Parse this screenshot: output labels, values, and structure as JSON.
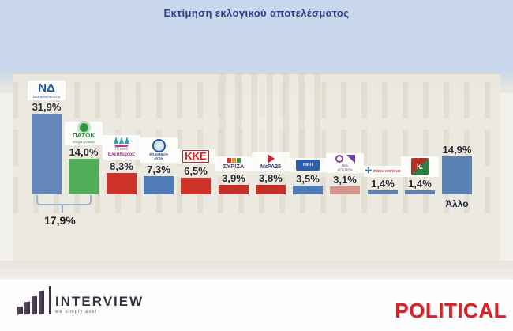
{
  "title": "Εκτίμηση εκλογικού αποτελέσματος",
  "colors": {
    "sky": "#c9d7ec",
    "title_text": "#2e3c8c",
    "bar_blue": "#6486ba",
    "bar_green": "#4fae57",
    "bar_red": "#cc3227",
    "bar_pink": "#d4948c",
    "bracket": "#9fb4d0",
    "political_red": "#d2232a",
    "interview_dark": "#3c3144"
  },
  "chart_data": {
    "type": "bar",
    "title": "Εκτίμηση εκλογικού αποτελέσματος",
    "xlabel": "",
    "ylabel": "",
    "unit": "%",
    "ylim": [
      0,
      35
    ],
    "grid": false,
    "legend": "none",
    "categories": [
      "ΝΔ",
      "ΠΑΣΟΚ",
      "Πλεύση Ελευθερίας",
      "Ελληνική Λύση",
      "ΚΚΕ",
      "ΣΥΡΙΖΑ",
      "ΜέΡΑ25",
      "ΝΙΚΗ",
      "Νέα Αριστερά",
      "Φωνή Λογικής",
      "ΚΟΣΜΟΣ",
      "Άλλο"
    ],
    "values": [
      31.9,
      14.0,
      8.3,
      7.3,
      6.5,
      3.9,
      3.8,
      3.5,
      3.1,
      1.4,
      1.4,
      14.9
    ],
    "value_labels": [
      "31,9%",
      "14,0%",
      "8,3%",
      "7,3%",
      "6,5%",
      "3,9%",
      "3,8%",
      "3,5%",
      "3,1%",
      "1,4%",
      "1,4%",
      "14,9%"
    ],
    "annotation": {
      "label": "17,9%",
      "spans_bars": [
        1,
        2
      ]
    },
    "parties": [
      {
        "slug": "nd",
        "name": "ΝΔ",
        "pct": "31,9%",
        "value": 31.9,
        "color": "#6486ba",
        "logo": {
          "kind": "nd",
          "text": "ΝΔ",
          "sub": "ΝΕΑ ΔΗΜΟΚΡΑΤΙΑ",
          "fg": "#1d4f9f"
        }
      },
      {
        "slug": "pasok",
        "name": "ΠΑΣΟΚ",
        "pct": "14,0%",
        "value": 14.0,
        "color": "#4fae57",
        "logo": {
          "kind": "pasok",
          "text": "ΠΑΣΟΚ",
          "sub": "Κίνημα Αλλαγής",
          "fg": "#2e8b3a"
        }
      },
      {
        "slug": "plefsi-eleftherias",
        "name": "Πλεύση Ελευθερίας",
        "pct": "8,3%",
        "value": 8.3,
        "color": "#cc3227",
        "logo": {
          "kind": "ship",
          "text": "Πλεύση",
          "sub": "Ελευθερίας",
          "fg": "#b5379a",
          "fg2": "#8a8a8a"
        }
      },
      {
        "slug": "elliniki-lysi",
        "name": "Ελληνική Λύση",
        "pct": "7,3%",
        "value": 7.3,
        "color": "#4f7cb8",
        "logo": {
          "kind": "circle-el",
          "text": "ΕΛΛΗΝΙΚΗ",
          "sub": "ΛΥΣΗ",
          "fg": "#27538f"
        }
      },
      {
        "slug": "kke",
        "name": "ΚΚΕ",
        "pct": "6,5%",
        "value": 6.5,
        "color": "#cc3227",
        "logo": {
          "kind": "kke",
          "text": "ΚΚΕ",
          "fg": "#cf2218"
        }
      },
      {
        "slug": "syriza",
        "name": "ΣΥΡΙΖΑ",
        "pct": "3,9%",
        "value": 3.9,
        "color": "#c23028",
        "logo": {
          "kind": "syriza",
          "text": "ΣΥΡΙΖΑ",
          "fg": "#55416b",
          "flag_colors": [
            "#d03328",
            "#e89020",
            "#3a9a4a"
          ]
        }
      },
      {
        "slug": "mera25",
        "name": "ΜέΡΑ25",
        "pct": "3,8%",
        "value": 3.8,
        "color": "#c23028",
        "logo": {
          "kind": "mera25",
          "text": "ΜέΡΑ25",
          "fg": "#343d66"
        }
      },
      {
        "slug": "niki",
        "name": "ΝΙΚΗ",
        "pct": "3,5%",
        "value": 3.5,
        "color": "#4f7cb8",
        "logo": {
          "kind": "niki",
          "text": "ΝΙΚΗ",
          "fg": "#ffffff"
        }
      },
      {
        "slug": "nea-aristera",
        "name": "Νέα Αριστερά",
        "pct": "3,1%",
        "value": 3.1,
        "color": "#d4948c",
        "logo": {
          "kind": "nea-aristera",
          "text": "ΝΕΑ",
          "sub": "ΑΡΙΣΤΕΡΑ",
          "fg": "#8a3f97"
        }
      },
      {
        "slug": "foni-logikis",
        "name": "Φωνή Λογικής",
        "pct": "1,4%",
        "value": 1.4,
        "color": "#5b82b4",
        "logo": {
          "kind": "foni",
          "text": "ΦΩΝΗ ΛΟΓΙΚΗΣ",
          "fg": "#d03338",
          "star": "✢"
        }
      },
      {
        "slug": "kosmos",
        "name": "ΚΟΣΜΟΣ",
        "pct": "1,4%",
        "value": 1.4,
        "color": "#5b82b4",
        "logo": {
          "kind": "kosmos",
          "text": "k.",
          "fg": "#ffffff"
        }
      },
      {
        "slug": "allo",
        "name": "Άλλο",
        "pct": "14,9%",
        "value": 14.9,
        "color": "#5b82b4",
        "logo": {
          "kind": "none"
        },
        "below_label": "Άλλο"
      }
    ]
  },
  "footer": {
    "interview_name": "INTERVIEW",
    "interview_slogan": "we simply ask!",
    "political_name": "POLITICAL"
  }
}
